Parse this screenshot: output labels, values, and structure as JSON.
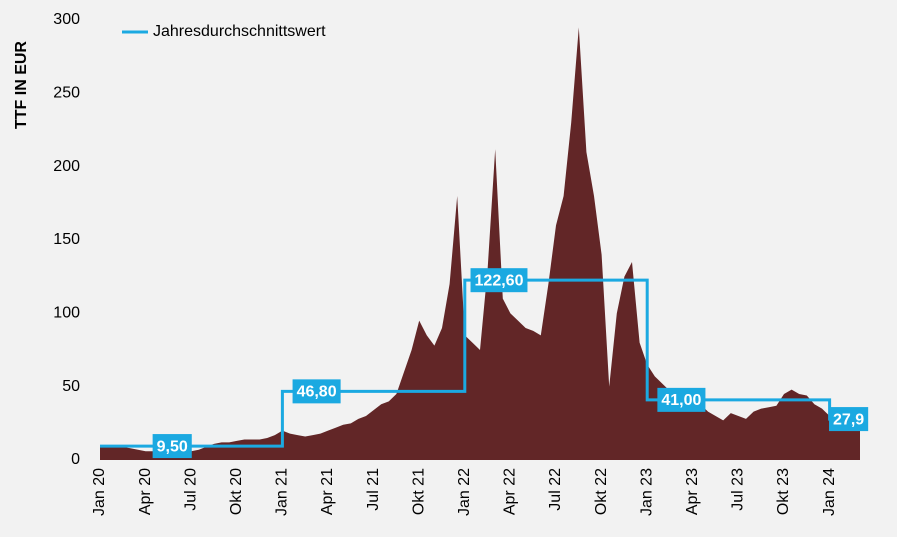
{
  "chart_data": {
    "type": "area-step",
    "y_label": "TTF IN EUR",
    "ylim": [
      0,
      300
    ],
    "yticks": [
      0,
      50,
      100,
      150,
      200,
      250,
      300
    ],
    "grid": false,
    "legend": "top-left",
    "categories": [
      "Jan 20",
      null,
      null,
      null,
      null,
      null,
      "Apr 20",
      null,
      null,
      null,
      null,
      null,
      "Jul 20",
      null,
      null,
      null,
      null,
      null,
      "Okt 20",
      null,
      null,
      null,
      null,
      null,
      "Jan 21",
      null,
      null,
      null,
      null,
      null,
      "Apr 21",
      null,
      null,
      null,
      null,
      null,
      "Jul 21",
      null,
      null,
      null,
      null,
      null,
      "Okt 21",
      null,
      null,
      null,
      null,
      null,
      "Jan 22",
      null,
      null,
      null,
      null,
      null,
      "Apr 22",
      null,
      null,
      null,
      null,
      null,
      "Jul 22",
      null,
      null,
      null,
      null,
      null,
      "Okt 22",
      null,
      null,
      null,
      null,
      null,
      "Jan 23",
      null,
      null,
      null,
      null,
      null,
      "Apr 23",
      null,
      null,
      null,
      null,
      null,
      "Jul 23",
      null,
      null,
      null,
      null,
      null,
      "Okt 23",
      null,
      null,
      null,
      null,
      null,
      "Jan 24",
      null,
      null,
      null
    ],
    "series": [
      {
        "color": "#622627",
        "kind": "area",
        "values": [
          10,
          9,
          9,
          9,
          8,
          7,
          6,
          6,
          5,
          4,
          5,
          6,
          6,
          7,
          9,
          11,
          12,
          12,
          13,
          14,
          14,
          14,
          15,
          17,
          20,
          18,
          17,
          16,
          17,
          18,
          20,
          22,
          24,
          25,
          28,
          30,
          34,
          38,
          40,
          45,
          60,
          75,
          95,
          85,
          78,
          90,
          120,
          180,
          85,
          80,
          75,
          130,
          212,
          110,
          100,
          95,
          90,
          88,
          85,
          120,
          160,
          180,
          230,
          295,
          210,
          180,
          140,
          50,
          100,
          125,
          135,
          80,
          65,
          57,
          52,
          47,
          45,
          42,
          40,
          38,
          33,
          30,
          27,
          32,
          30,
          28,
          33,
          35,
          36,
          37,
          45,
          48,
          45,
          44,
          38,
          35,
          30,
          28,
          26,
          25
        ]
      },
      {
        "name": "Jahresdurchschnittswert",
        "color": "#1ba9e1",
        "kind": "step",
        "values": [
          9.5,
          9.5,
          9.5,
          9.5,
          9.5,
          9.5,
          9.5,
          9.5,
          9.5,
          9.5,
          9.5,
          9.5,
          9.5,
          9.5,
          9.5,
          9.5,
          9.5,
          9.5,
          9.5,
          9.5,
          9.5,
          9.5,
          9.5,
          9.5,
          46.8,
          46.8,
          46.8,
          46.8,
          46.8,
          46.8,
          46.8,
          46.8,
          46.8,
          46.8,
          46.8,
          46.8,
          46.8,
          46.8,
          46.8,
          46.8,
          46.8,
          46.8,
          46.8,
          46.8,
          46.8,
          46.8,
          46.8,
          46.8,
          122.6,
          122.6,
          122.6,
          122.6,
          122.6,
          122.6,
          122.6,
          122.6,
          122.6,
          122.6,
          122.6,
          122.6,
          122.6,
          122.6,
          122.6,
          122.6,
          122.6,
          122.6,
          122.6,
          122.6,
          122.6,
          122.6,
          122.6,
          122.6,
          41.0,
          41.0,
          41.0,
          41.0,
          41.0,
          41.0,
          41.0,
          41.0,
          41.0,
          41.0,
          41.0,
          41.0,
          41.0,
          41.0,
          41.0,
          41.0,
          41.0,
          41.0,
          41.0,
          41.0,
          41.0,
          41.0,
          41.0,
          41.0,
          27.9,
          27.9,
          27.9,
          27.9
        ],
        "value_labels": [
          null,
          null,
          null,
          null,
          null,
          null,
          null,
          null,
          null,
          "9,50",
          null,
          null,
          null,
          null,
          null,
          null,
          null,
          null,
          null,
          null,
          null,
          null,
          null,
          null,
          null,
          null,
          null,
          null,
          "46,80",
          null,
          null,
          null,
          null,
          null,
          null,
          null,
          null,
          null,
          null,
          null,
          null,
          null,
          null,
          null,
          null,
          null,
          null,
          null,
          null,
          null,
          null,
          null,
          "122,60",
          null,
          null,
          null,
          null,
          null,
          null,
          null,
          null,
          null,
          null,
          null,
          null,
          null,
          null,
          null,
          null,
          null,
          null,
          null,
          null,
          null,
          null,
          null,
          "41,00",
          null,
          null,
          null,
          null,
          null,
          null,
          null,
          null,
          null,
          null,
          null,
          null,
          null,
          null,
          null,
          null,
          null,
          null,
          null,
          null,
          null,
          "27,9",
          null
        ]
      }
    ]
  }
}
